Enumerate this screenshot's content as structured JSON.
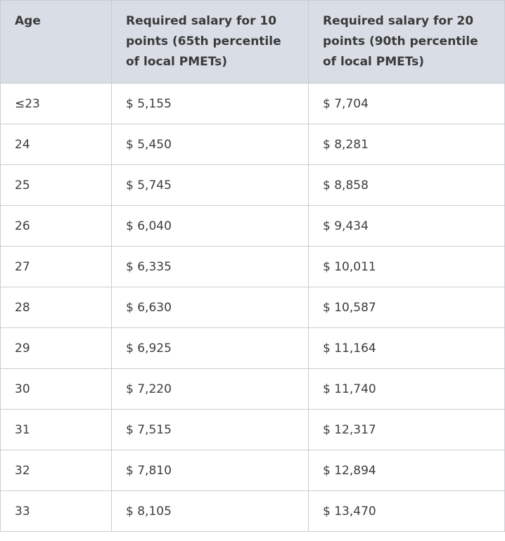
{
  "table": {
    "headers": [
      "Age",
      "Required salary for 10 points (65th percentile of local PMETs)",
      "Required salary for 20 points (90th percentile of local PMETs)"
    ],
    "rows": [
      [
        "≤23",
        "$ 5,155",
        "$ 7,704"
      ],
      [
        "24",
        "$ 5,450",
        "$ 8,281"
      ],
      [
        "25",
        "$ 5,745",
        "$ 8,858"
      ],
      [
        "26",
        "$ 6,040",
        "$ 9,434"
      ],
      [
        "27",
        "$ 6,335",
        "$ 10,011"
      ],
      [
        "28",
        "$ 6,630",
        "$ 10,587"
      ],
      [
        "29",
        "$ 6,925",
        "$ 11,164"
      ],
      [
        "30",
        "$ 7,220",
        "$ 11,740"
      ],
      [
        "31",
        "$ 7,515",
        "$ 12,317"
      ],
      [
        "32",
        "$ 7,810",
        "$ 12,894"
      ],
      [
        "33",
        "$ 8,105",
        "$ 13,470"
      ]
    ]
  },
  "colors": {
    "header_background": "#d9dee6",
    "border": "#c9cdd2",
    "text": "#3d3d3d"
  }
}
